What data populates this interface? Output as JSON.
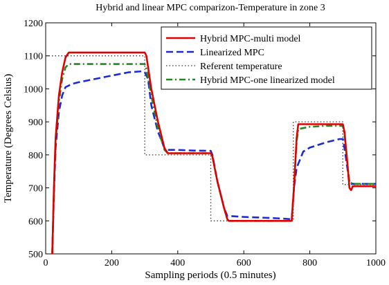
{
  "chart_data": {
    "type": "line",
    "title": "Hybrid and linear MPC comparizon-Temperature in zone 3",
    "xlabel": "Sampling periods (0.5 minutes)",
    "ylabel": "Temperature (Degrees Celsius)",
    "xlim": [
      0,
      1000
    ],
    "ylim": [
      500,
      1200
    ],
    "xticks": [
      0,
      200,
      400,
      600,
      800,
      1000
    ],
    "yticks": [
      500,
      600,
      700,
      800,
      900,
      1000,
      1100,
      1200
    ],
    "grid": false,
    "legend_position": "top-right",
    "series": [
      {
        "name": "Hybrid MPC-multi model",
        "color": "#e00000",
        "style": "solid",
        "points": [
          [
            20,
            500
          ],
          [
            25,
            700
          ],
          [
            30,
            850
          ],
          [
            40,
            980
          ],
          [
            50,
            1050
          ],
          [
            60,
            1095
          ],
          [
            70,
            1110
          ],
          [
            100,
            1110
          ],
          [
            200,
            1110
          ],
          [
            300,
            1110
          ],
          [
            305,
            1100
          ],
          [
            320,
            1000
          ],
          [
            340,
            900
          ],
          [
            360,
            820
          ],
          [
            370,
            805
          ],
          [
            400,
            805
          ],
          [
            450,
            805
          ],
          [
            500,
            805
          ],
          [
            505,
            795
          ],
          [
            520,
            720
          ],
          [
            540,
            640
          ],
          [
            550,
            605
          ],
          [
            555,
            600
          ],
          [
            600,
            600
          ],
          [
            700,
            600
          ],
          [
            745,
            600
          ],
          [
            752,
            700
          ],
          [
            760,
            850
          ],
          [
            765,
            893
          ],
          [
            800,
            893
          ],
          [
            850,
            893
          ],
          [
            900,
            893
          ],
          [
            905,
            870
          ],
          [
            915,
            760
          ],
          [
            920,
            700
          ],
          [
            925,
            693
          ],
          [
            930,
            705
          ],
          [
            1000,
            705
          ]
        ]
      },
      {
        "name": "Linearized MPC",
        "color": "#1a2bd6",
        "style": "dashed",
        "points": [
          [
            20,
            500
          ],
          [
            25,
            680
          ],
          [
            30,
            820
          ],
          [
            40,
            930
          ],
          [
            50,
            980
          ],
          [
            60,
            1005
          ],
          [
            80,
            1015
          ],
          [
            100,
            1020
          ],
          [
            150,
            1030
          ],
          [
            200,
            1040
          ],
          [
            250,
            1050
          ],
          [
            290,
            1053
          ],
          [
            300,
            1050
          ],
          [
            310,
            1030
          ],
          [
            320,
            950
          ],
          [
            340,
            870
          ],
          [
            360,
            820
          ],
          [
            370,
            815
          ],
          [
            400,
            815
          ],
          [
            450,
            813
          ],
          [
            500,
            812
          ],
          [
            505,
            800
          ],
          [
            520,
            720
          ],
          [
            540,
            640
          ],
          [
            550,
            615
          ],
          [
            600,
            612
          ],
          [
            700,
            608
          ],
          [
            745,
            605
          ],
          [
            752,
            700
          ],
          [
            760,
            760
          ],
          [
            780,
            810
          ],
          [
            800,
            822
          ],
          [
            850,
            838
          ],
          [
            890,
            848
          ],
          [
            900,
            848
          ],
          [
            905,
            820
          ],
          [
            915,
            750
          ],
          [
            920,
            715
          ],
          [
            930,
            712
          ],
          [
            1000,
            712
          ]
        ]
      },
      {
        "name": "Referent temperature",
        "color": "#333333",
        "style": "dotted",
        "points": [
          [
            0,
            1100
          ],
          [
            300,
            1100
          ],
          [
            300,
            800
          ],
          [
            500,
            800
          ],
          [
            500,
            600
          ],
          [
            750,
            600
          ],
          [
            750,
            900
          ],
          [
            900,
            900
          ],
          [
            900,
            710
          ],
          [
            1000,
            710
          ]
        ]
      },
      {
        "name": "Hybrid MPC-one linearized model",
        "color": "#1f8a1f",
        "style": "dashdot",
        "points": [
          [
            20,
            500
          ],
          [
            25,
            690
          ],
          [
            30,
            840
          ],
          [
            40,
            960
          ],
          [
            50,
            1030
          ],
          [
            60,
            1065
          ],
          [
            70,
            1075
          ],
          [
            100,
            1075
          ],
          [
            200,
            1075
          ],
          [
            290,
            1075
          ],
          [
            300,
            1075
          ],
          [
            305,
            1060
          ],
          [
            320,
            980
          ],
          [
            340,
            880
          ],
          [
            360,
            815
          ],
          [
            370,
            805
          ],
          [
            400,
            805
          ],
          [
            450,
            805
          ],
          [
            500,
            805
          ],
          [
            505,
            795
          ],
          [
            520,
            720
          ],
          [
            540,
            640
          ],
          [
            550,
            605
          ],
          [
            555,
            600
          ],
          [
            600,
            600
          ],
          [
            700,
            600
          ],
          [
            745,
            600
          ],
          [
            752,
            700
          ],
          [
            760,
            840
          ],
          [
            765,
            878
          ],
          [
            800,
            885
          ],
          [
            850,
            888
          ],
          [
            900,
            888
          ],
          [
            905,
            860
          ],
          [
            915,
            760
          ],
          [
            920,
            718
          ],
          [
            930,
            712
          ],
          [
            1000,
            712
          ]
        ]
      }
    ]
  }
}
